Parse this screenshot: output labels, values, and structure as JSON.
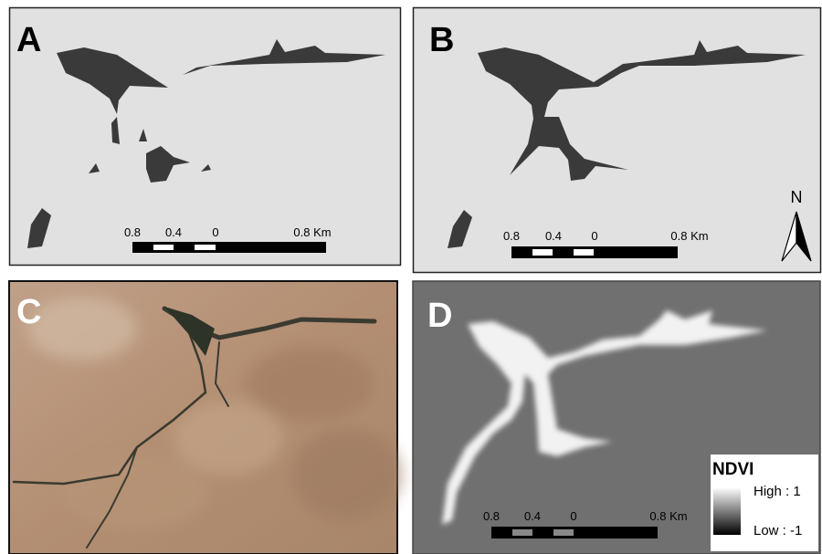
{
  "panels": [
    {
      "label": "A",
      "scale_bar": {
        "labels": [
          "0.8",
          "0.4",
          "0",
          "0.8 Km"
        ]
      }
    },
    {
      "label": "B",
      "scale_bar": {
        "labels": [
          "0.8",
          "0.4",
          "0",
          "0.8 Km"
        ]
      }
    },
    {
      "label": "C"
    },
    {
      "label": "D",
      "scale_bar": {
        "labels": [
          "0.8",
          "0.4",
          "0",
          "0.8 Km"
        ]
      }
    }
  ],
  "north_arrow": {
    "label": "N"
  },
  "legend": {
    "title": "NDVI",
    "high": "High : 1",
    "low": "Low : -1"
  }
}
